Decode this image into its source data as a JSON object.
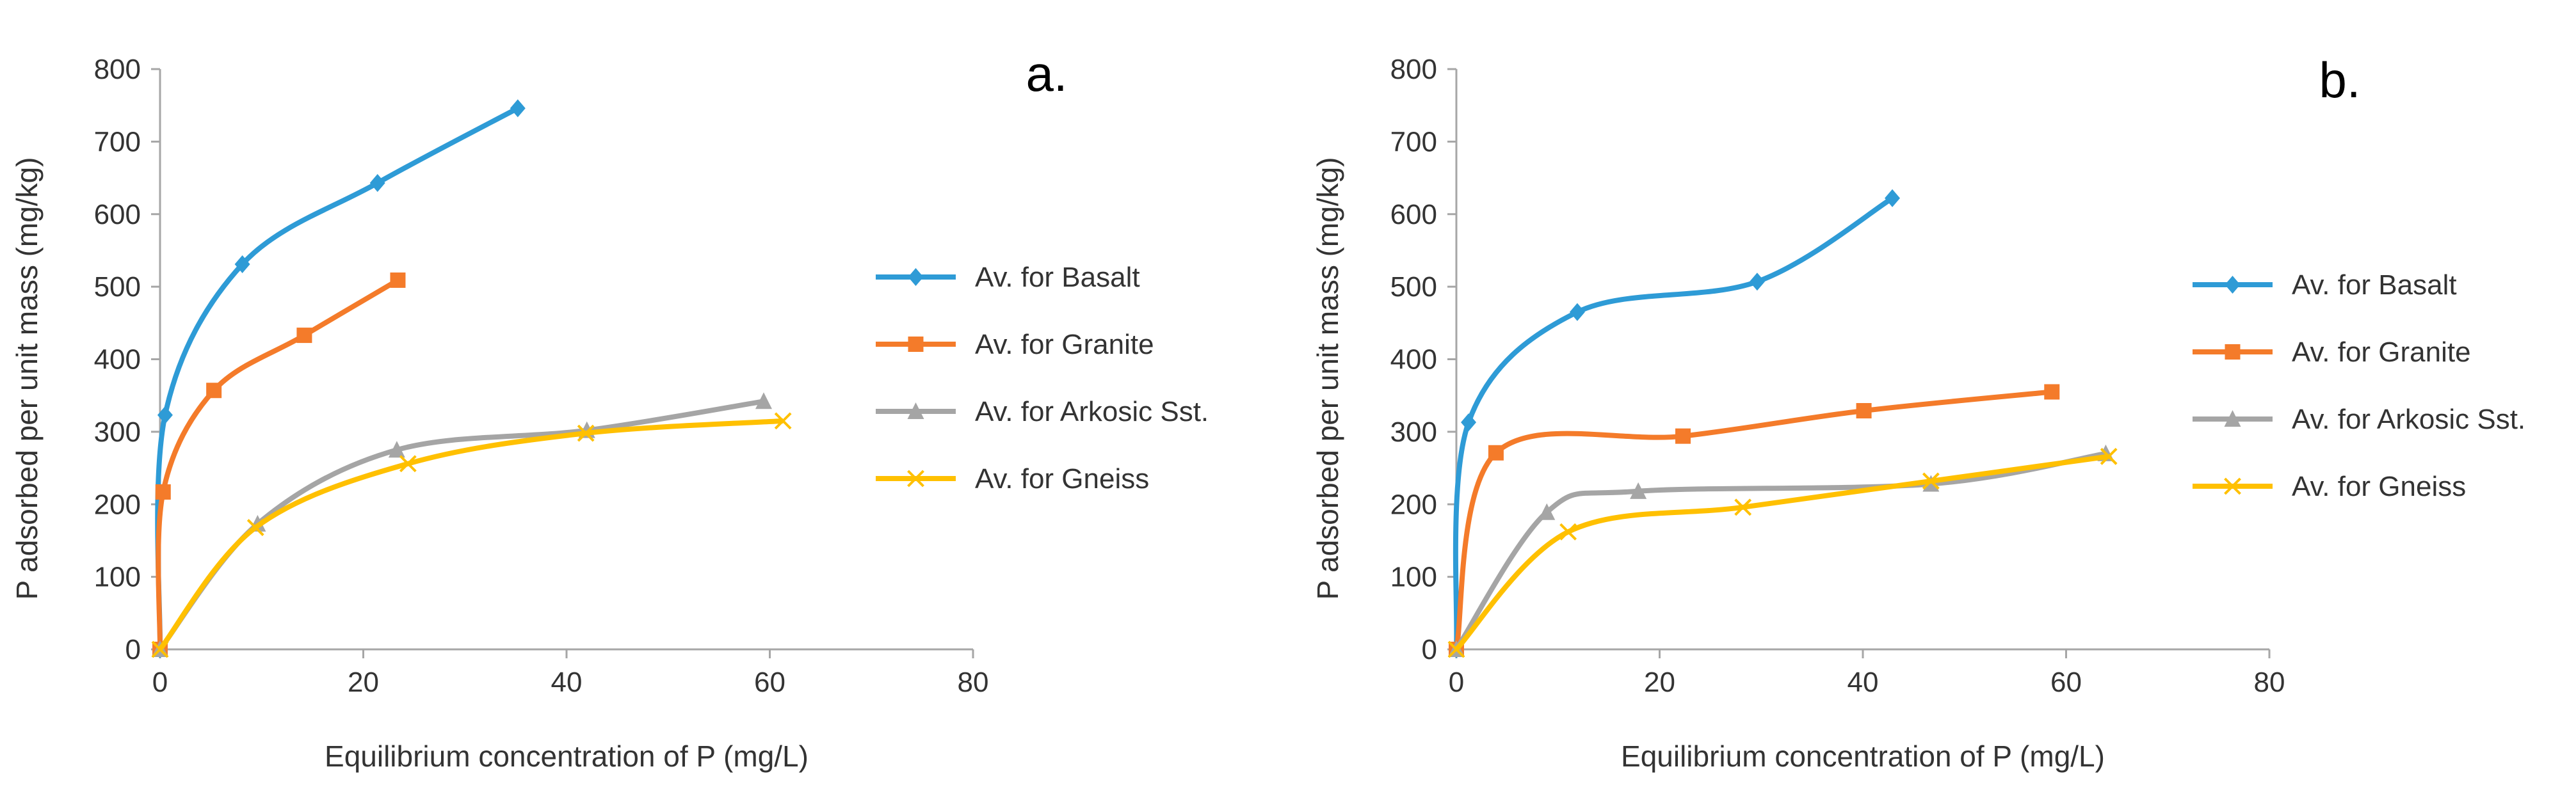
{
  "chart_data": [
    {
      "type": "line",
      "panel_label": "a.",
      "xlabel": "Equilibrium concentration of P (mg/L)",
      "ylabel": "P adsorbed  per unit mass (mg/kg)",
      "xlim": [
        0,
        80
      ],
      "ylim": [
        0,
        800
      ],
      "xticks": [
        0,
        20,
        40,
        60,
        80
      ],
      "yticks": [
        0,
        100,
        200,
        300,
        400,
        500,
        600,
        700,
        800
      ],
      "grid": false,
      "legend_position": "right",
      "series": [
        {
          "name": "Av. for Basalt",
          "color": "#2E9BD6",
          "marker": "diamond",
          "x": [
            0,
            0.5,
            8.1,
            21.4,
            35.2
          ],
          "y": [
            0,
            323,
            531,
            643,
            746
          ]
        },
        {
          "name": "Av. for Granite",
          "color": "#F47B2A",
          "marker": "square",
          "x": [
            0,
            0.3,
            5.3,
            14.2,
            23.4
          ],
          "y": [
            0,
            217,
            357,
            433,
            509
          ]
        },
        {
          "name": "Av. for Arkosic Sst.",
          "color": "#A5A5A5",
          "marker": "triangle",
          "x": [
            0,
            9.6,
            23.3,
            42.0,
            59.4
          ],
          "y": [
            0,
            173,
            275,
            302,
            342
          ]
        },
        {
          "name": "Av. for Gneiss",
          "color": "#FFC000",
          "marker": "x",
          "x": [
            0,
            9.4,
            24.4,
            41.9,
            61.3
          ],
          "y": [
            0,
            168,
            256,
            298,
            315
          ]
        }
      ]
    },
    {
      "type": "line",
      "panel_label": "b.",
      "xlabel": "Equilibrium concentration of P (mg/L)",
      "ylabel": "P adsorbed  per unit mass (mg/kg)",
      "xlim": [
        0,
        80
      ],
      "ylim": [
        0,
        800
      ],
      "xticks": [
        0,
        20,
        40,
        60,
        80
      ],
      "yticks": [
        0,
        100,
        200,
        300,
        400,
        500,
        600,
        700,
        800
      ],
      "grid": false,
      "legend_position": "right",
      "series": [
        {
          "name": "Av. for Basalt",
          "color": "#2E9BD6",
          "marker": "diamond",
          "x": [
            0,
            1.2,
            11.9,
            29.6,
            42.9
          ],
          "y": [
            0,
            313,
            465,
            507,
            622
          ]
        },
        {
          "name": "Av. for Granite",
          "color": "#F47B2A",
          "marker": "square",
          "x": [
            0,
            3.9,
            22.3,
            40.1,
            58.6
          ],
          "y": [
            0,
            271,
            294,
            329,
            355
          ]
        },
        {
          "name": "Av. for Arkosic Sst.",
          "color": "#A5A5A5",
          "marker": "triangle",
          "x": [
            0,
            8.9,
            17.9,
            46.7,
            63.9
          ],
          "y": [
            0,
            189,
            218,
            228,
            270
          ]
        },
        {
          "name": "Av. for Gneiss",
          "color": "#FFC000",
          "marker": "x",
          "x": [
            0,
            11.0,
            28.2,
            46.7,
            64.2
          ],
          "y": [
            0,
            162,
            196,
            232,
            266
          ]
        }
      ]
    }
  ]
}
